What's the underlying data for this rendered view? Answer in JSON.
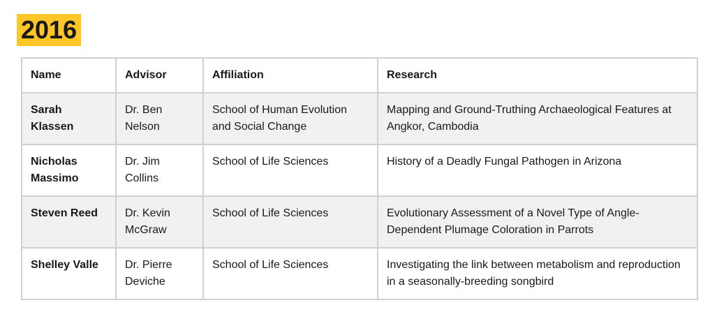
{
  "heading": {
    "year": "2016"
  },
  "table": {
    "headers": {
      "name": "Name",
      "advisor": "Advisor",
      "affiliation": "Affiliation",
      "research": "Research"
    },
    "rows": [
      {
        "name": "Sarah Klassen",
        "advisor": "Dr. Ben Nelson",
        "affiliation": "School of Human Evolution and Social Change",
        "research": "Mapping and Ground-Truthing Archaeological Features at Angkor, Cambodia"
      },
      {
        "name": "Nicholas Massimo",
        "advisor": "Dr. Jim Collins",
        "affiliation": "School of Life Sciences",
        "research": "History of a Deadly Fungal Pathogen in Arizona"
      },
      {
        "name": "Steven Reed",
        "advisor": "Dr. Kevin McGraw",
        "affiliation": "School of Life Sciences",
        "research": "Evolutionary Assessment of a Novel Type of Angle-Dependent Plumage Coloration in Parrots"
      },
      {
        "name": "Shelley Valle",
        "advisor": "Dr. Pierre Deviche",
        "affiliation": "School of Life Sciences",
        "research": "Investigating the link between metabolism and reproduction in a seasonally-breeding songbird"
      }
    ]
  },
  "colors": {
    "heading_highlight": "#ffc627",
    "row_stripe": "#f1f1f1",
    "border": "#d0d0d0",
    "text": "#191919"
  }
}
